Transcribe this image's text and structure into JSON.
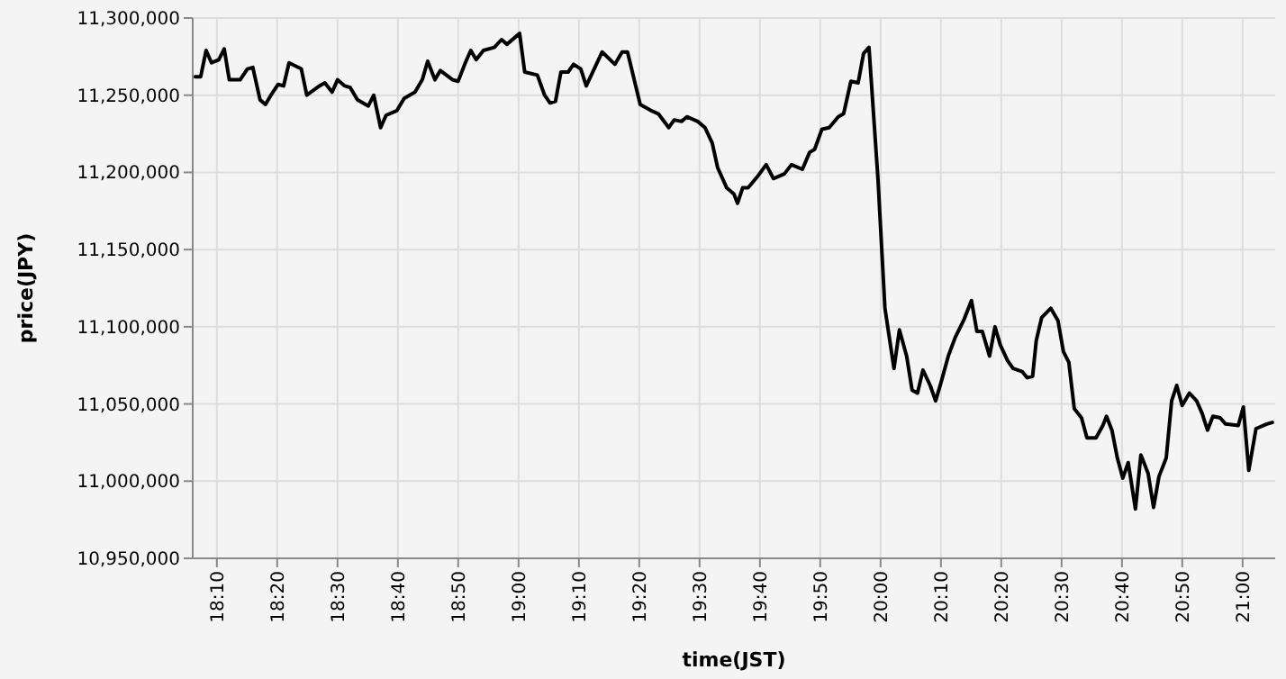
{
  "chart_data": {
    "type": "line",
    "xlabel": "time(JST)",
    "ylabel": "price(JPY)",
    "grid": true,
    "marker": "none",
    "line_style": "solid",
    "xlim": [
      18.1,
      21.09
    ],
    "xticks": [
      {
        "value": 18.1667,
        "label": "18:10"
      },
      {
        "value": 18.3333,
        "label": "18:20"
      },
      {
        "value": 18.5,
        "label": "18:30"
      },
      {
        "value": 18.6667,
        "label": "18:40"
      },
      {
        "value": 18.8333,
        "label": "18:50"
      },
      {
        "value": 19,
        "label": "19:00"
      },
      {
        "value": 19.1667,
        "label": "19:10"
      },
      {
        "value": 19.3333,
        "label": "19:20"
      },
      {
        "value": 19.5,
        "label": "19:30"
      },
      {
        "value": 19.6667,
        "label": "19:40"
      },
      {
        "value": 19.8333,
        "label": "19:50"
      },
      {
        "value": 20,
        "label": "20:00"
      },
      {
        "value": 20.1667,
        "label": "20:10"
      },
      {
        "value": 20.3333,
        "label": "20:20"
      },
      {
        "value": 20.5,
        "label": "20:30"
      },
      {
        "value": 20.6667,
        "label": "20:40"
      },
      {
        "value": 20.8333,
        "label": "20:50"
      },
      {
        "value": 21,
        "label": "21:00"
      }
    ],
    "ylim": [
      10950000,
      11300000
    ],
    "yticks": [
      {
        "value": 10950000,
        "label": "10,950,000"
      },
      {
        "value": 11000000,
        "label": "11,000,000"
      },
      {
        "value": 11050000,
        "label": "11,050,000"
      },
      {
        "value": 11100000,
        "label": "11,100,000"
      },
      {
        "value": 11150000,
        "label": "11,150,000"
      },
      {
        "value": 11200000,
        "label": "11,200,000"
      },
      {
        "value": 11250000,
        "label": "11,250,000"
      },
      {
        "value": 11300000,
        "label": "11,300,000"
      }
    ],
    "x": [
      18.107,
      18.122,
      18.137,
      18.152,
      18.172,
      18.187,
      18.201,
      18.231,
      18.251,
      18.266,
      18.286,
      18.301,
      18.316,
      18.336,
      18.351,
      18.366,
      18.4,
      18.415,
      18.45,
      18.465,
      18.485,
      18.5,
      18.52,
      18.535,
      18.555,
      18.585,
      18.6,
      18.619,
      18.634,
      18.664,
      18.684,
      18.714,
      18.734,
      18.749,
      18.769,
      18.784,
      18.818,
      18.833,
      18.853,
      18.868,
      18.883,
      18.903,
      18.933,
      18.953,
      18.968,
      19.003,
      19.017,
      19.052,
      19.072,
      19.087,
      19.102,
      19.117,
      19.137,
      19.152,
      19.172,
      19.187,
      19.201,
      19.231,
      19.266,
      19.286,
      19.301,
      19.336,
      19.366,
      19.386,
      19.415,
      19.43,
      19.45,
      19.465,
      19.495,
      19.515,
      19.535,
      19.55,
      19.575,
      19.595,
      19.605,
      19.619,
      19.634,
      19.659,
      19.684,
      19.704,
      19.734,
      19.754,
      19.784,
      19.804,
      19.818,
      19.838,
      19.858,
      19.883,
      19.898,
      19.918,
      19.938,
      19.953,
      19.968,
      19.993,
      20.012,
      20.037,
      20.052,
      20.072,
      20.087,
      20.102,
      20.117,
      20.137,
      20.152,
      20.167,
      20.187,
      20.206,
      20.231,
      20.251,
      20.266,
      20.281,
      20.301,
      20.316,
      20.331,
      20.351,
      20.366,
      20.391,
      20.405,
      20.42,
      20.43,
      20.445,
      20.47,
      20.49,
      20.505,
      20.52,
      20.535,
      20.555,
      20.57,
      20.595,
      20.614,
      20.624,
      20.639,
      20.654,
      20.669,
      20.684,
      20.704,
      20.719,
      20.739,
      20.754,
      20.769,
      20.789,
      20.804,
      20.818,
      20.833,
      20.853,
      20.873,
      20.888,
      20.903,
      20.918,
      20.938,
      20.953,
      20.988,
      21.002,
      21.017,
      21.037,
      21.067,
      21.082
    ],
    "series": [
      {
        "color": "#000000",
        "values": [
          11262000,
          11262000,
          11279000,
          11271000,
          11273000,
          11280000,
          11260000,
          11260000,
          11267000,
          11268000,
          11247000,
          11244000,
          11250000,
          11257000,
          11256000,
          11271000,
          11267000,
          11250000,
          11256000,
          11258000,
          11252000,
          11260000,
          11256000,
          11255000,
          11247000,
          11243000,
          11250000,
          11229000,
          11237000,
          11240000,
          11248000,
          11252000,
          11260000,
          11272000,
          11260000,
          11266000,
          11260000,
          11259000,
          11271000,
          11279000,
          11273000,
          11279000,
          11281000,
          11286000,
          11283000,
          11290000,
          11265000,
          11263000,
          11250000,
          11245000,
          11246000,
          11265000,
          11265000,
          11270000,
          11267000,
          11256000,
          11263000,
          11278000,
          11270000,
          11278000,
          11278000,
          11244000,
          11240000,
          11238000,
          11229000,
          11234000,
          11233000,
          11236000,
          11233000,
          11229000,
          11219000,
          11203000,
          11190000,
          11186000,
          11180000,
          11190000,
          11190000,
          11197000,
          11205000,
          11196000,
          11199000,
          11205000,
          11202000,
          11213000,
          11215000,
          11228000,
          11229000,
          11236000,
          11238000,
          11259000,
          11258000,
          11277000,
          11281000,
          11195000,
          11112000,
          11073000,
          11098000,
          11081000,
          11059000,
          11057000,
          11072000,
          11062000,
          11052000,
          11064000,
          11081000,
          11093000,
          11105000,
          11117000,
          11097000,
          11097000,
          11081000,
          11100000,
          11088000,
          11078000,
          11073000,
          11071000,
          11067000,
          11068000,
          11091000,
          11106000,
          11112000,
          11104000,
          11084000,
          11077000,
          11047000,
          11041000,
          11028000,
          11028000,
          11036000,
          11042000,
          11033000,
          11015000,
          11002000,
          11012000,
          10982000,
          11017000,
          11005000,
          10983000,
          11003000,
          11015000,
          11052000,
          11062000,
          11049000,
          11057000,
          11052000,
          11044000,
          11033000,
          11042000,
          11041000,
          11037000,
          11036000,
          11048000,
          11007000,
          11034000,
          11037000,
          11038000
        ]
      }
    ]
  }
}
